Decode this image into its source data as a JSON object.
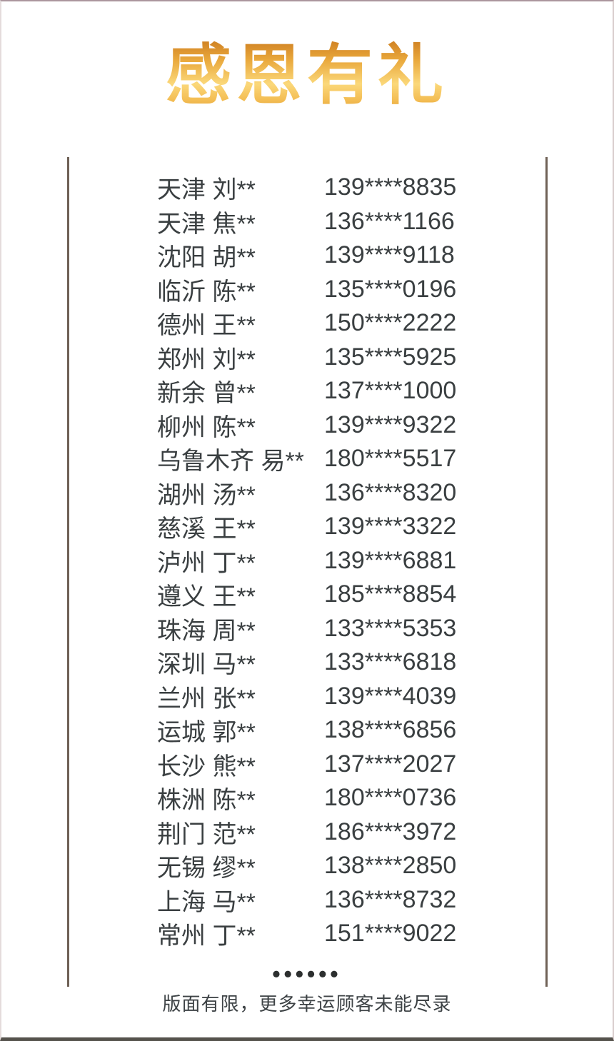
{
  "poster": {
    "title": "感恩有礼",
    "footer_dots": "••••••",
    "footer_note": "版面有限，更多幸运顾客未能尽录"
  },
  "winners": [
    {
      "name": "天津 刘**",
      "phone": "139****8835"
    },
    {
      "name": "天津 焦**",
      "phone": "136****1166"
    },
    {
      "name": "沈阳 胡**",
      "phone": "139****9118"
    },
    {
      "name": "临沂 陈**",
      "phone": "135****0196"
    },
    {
      "name": "德州 王**",
      "phone": "150****2222"
    },
    {
      "name": "郑州 刘**",
      "phone": "135****5925"
    },
    {
      "name": "新余 曾**",
      "phone": "137****1000"
    },
    {
      "name": "柳州 陈**",
      "phone": "139****9322"
    },
    {
      "name": "乌鲁木齐 易**",
      "phone": "180****5517"
    },
    {
      "name": "湖州 汤**",
      "phone": "136****8320"
    },
    {
      "name": "慈溪 王**",
      "phone": "139****3322"
    },
    {
      "name": "泸州 丁**",
      "phone": "139****6881"
    },
    {
      "name": "遵义 王**",
      "phone": "185****8854"
    },
    {
      "name": "珠海 周**",
      "phone": "133****5353"
    },
    {
      "name": "深圳 马**",
      "phone": "133****6818"
    },
    {
      "name": "兰州 张**",
      "phone": "139****4039"
    },
    {
      "name": "运城 郭**",
      "phone": "138****6856"
    },
    {
      "name": "长沙 熊**",
      "phone": "137****2027"
    },
    {
      "name": "株洲 陈**",
      "phone": "180****0736"
    },
    {
      "name": "荆门 范**",
      "phone": "186****3972"
    },
    {
      "name": "无锡 缪**",
      "phone": "138****2850"
    },
    {
      "name": "上海 马**",
      "phone": "136****8732"
    },
    {
      "name": "常州 丁**",
      "phone": "151****9022"
    }
  ],
  "colors": {
    "title_gold_dark": "#cd7d20",
    "title_gold_light": "#fbd87a",
    "rule_line": "#6f6156",
    "list_text": "#3a3f41",
    "bottom_border": "#55524c"
  }
}
